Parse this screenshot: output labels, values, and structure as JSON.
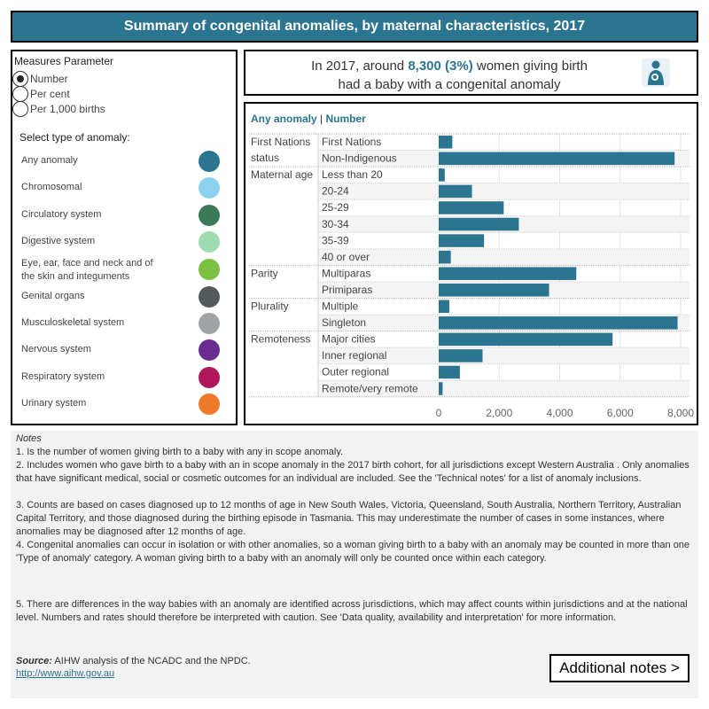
{
  "title": "Summary of congenital anomalies, by maternal characteristics, 2017",
  "measures": {
    "title": "Measures Parameter",
    "options": [
      "Number",
      "Per cent",
      "Per 1,000 births"
    ],
    "selected": "Number"
  },
  "anomaly_select": {
    "title": "Select type of anomaly:",
    "items": [
      {
        "label": "Any anomaly",
        "color": "#2c7591"
      },
      {
        "label": "Chromosomal",
        "color": "#8dd3f0"
      },
      {
        "label": "Circulatory system",
        "color": "#3a7a5a"
      },
      {
        "label": "Digestive system",
        "color": "#9fdbb0"
      },
      {
        "label": "Eye, ear, face and neck and of the skin and integuments",
        "color": "#7bc043"
      },
      {
        "label": "Genital organs",
        "color": "#545a5c"
      },
      {
        "label": "Musculoskeletal system",
        "color": "#a1a4a6"
      },
      {
        "label": "Nervous system",
        "color": "#6b2c91"
      },
      {
        "label": "Respiratory system",
        "color": "#b0175a"
      },
      {
        "label": "Urinary system",
        "color": "#f07a2b"
      }
    ]
  },
  "summary": {
    "prefix": "In 2017, around",
    "highlight": "8,300 (3%)",
    "suffix": "women giving birth had a baby with a congenital anomaly",
    "icon": "mother-baby-icon"
  },
  "chart_data": {
    "type": "bar",
    "heading_left": "Any anomaly",
    "heading_sep": "|",
    "heading_right": "Number",
    "groups": [
      {
        "name": "First Nations status",
        "categories": [
          "First Nations",
          "Non-Indigenous"
        ],
        "values": [
          450,
          7800
        ]
      },
      {
        "name": "Maternal age",
        "categories": [
          "Less than 20",
          "20-24",
          "25-29",
          "30-34",
          "35-39",
          "40 or over"
        ],
        "values": [
          200,
          1100,
          2150,
          2650,
          1500,
          400
        ]
      },
      {
        "name": "Parity",
        "categories": [
          "Multiparas",
          "Primiparas"
        ],
        "values": [
          4550,
          3650
        ]
      },
      {
        "name": "Plurality",
        "categories": [
          "Multiple",
          "Singleton"
        ],
        "values": [
          350,
          7900
        ]
      },
      {
        "name": "Remoteness",
        "categories": [
          "Major cities",
          "Inner regional",
          "Outer regional",
          "Remote/very remote"
        ],
        "values": [
          5750,
          1450,
          700,
          130
        ]
      }
    ],
    "xlim": [
      0,
      8000
    ],
    "xticks": [
      0,
      2000,
      4000,
      6000,
      8000
    ],
    "xtick_labels": [
      "0",
      "2,000",
      "4,000",
      "6,000",
      "8,000"
    ],
    "bar_color": "#2c7591"
  },
  "notes": {
    "title": "Notes",
    "items": [
      "1. Is the number of women giving birth to a baby with any in scope anomaly.",
      "2. Includes women who gave birth to a baby with an in scope anomaly in the 2017 birth cohort, for all jurisdictions except Western Australia . Only anomalies that have significant medical, social or cosmetic outcomes for an individual are included. See the 'Technical notes' for a list of anomaly inclusions.",
      "3. Counts are based on cases diagnosed up to 12 months of age in New South Wales, Victoria, Queensland, South Australia, Northern Territory, Australian Capital Territory, and those diagnosed during the birthing episode in Tasmania. This may underestimate the number of cases in some instances, where anomalies may be diagnosed after 12 months of age.",
      "4. Congenital anomalies can occur in isolation or with other anomalies, so a woman giving birth to a baby with an anomaly may be counted in more than one 'Type of anomaly' category. A woman giving birth to a baby with an anomaly will only be counted once within each category.",
      "5. There are differences in the way babies with an anomaly are identified across jurisdictions, which may affect counts within jurisdictions and at the national level. Numbers and rates should therefore be interpreted with caution. See 'Data quality, availability and interpretation' for more information."
    ],
    "source_label": "Source:",
    "source_text": "AIHW analysis of the NCADC and the NPDC.",
    "link": "http://www.aihw.gov.au",
    "button": "Additional notes >"
  }
}
